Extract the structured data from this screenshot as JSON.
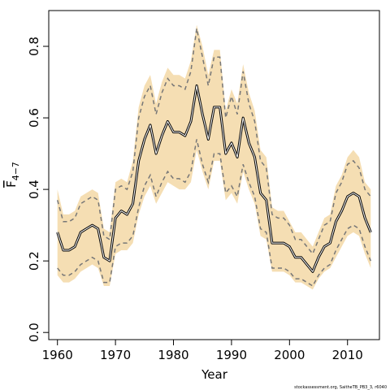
{
  "chart_data": {
    "type": "line",
    "title": "",
    "xlabel": "Year",
    "ylabel_main": "F",
    "ylabel_sub": "4−7",
    "xlim": [
      1958.5,
      2015.5
    ],
    "ylim": [
      -0.02,
      0.9
    ],
    "xticks": [
      1960,
      1970,
      1980,
      1990,
      2000,
      2010
    ],
    "yticks": [
      0.0,
      0.2,
      0.4,
      0.6,
      0.8
    ],
    "ytick_labels": [
      "0.0",
      "0.2",
      "0.4",
      "0.6",
      "0.8"
    ],
    "grid": false,
    "colors": {
      "band": "#f5deb3",
      "median": "#000000",
      "estimate": "#ffffff",
      "ci": "#777777"
    },
    "x": [
      1960,
      1961,
      1962,
      1963,
      1964,
      1965,
      1966,
      1967,
      1968,
      1969,
      1970,
      1971,
      1972,
      1973,
      1974,
      1975,
      1976,
      1977,
      1978,
      1979,
      1980,
      1981,
      1982,
      1983,
      1984,
      1985,
      1986,
      1987,
      1988,
      1989,
      1990,
      1991,
      1992,
      1993,
      1994,
      1995,
      1996,
      1997,
      1998,
      1999,
      2000,
      2001,
      2002,
      2003,
      2004,
      2005,
      2006,
      2007,
      2008,
      2009,
      2010,
      2011,
      2012,
      2013,
      2014
    ],
    "series": [
      {
        "role": "median",
        "values": [
          0.28,
          0.23,
          0.23,
          0.24,
          0.28,
          0.29,
          0.3,
          0.29,
          0.21,
          0.2,
          0.32,
          0.34,
          0.33,
          0.36,
          0.48,
          0.54,
          0.58,
          0.5,
          0.55,
          0.59,
          0.56,
          0.56,
          0.55,
          0.59,
          0.69,
          0.61,
          0.54,
          0.63,
          0.63,
          0.5,
          0.53,
          0.49,
          0.6,
          0.53,
          0.49,
          0.39,
          0.37,
          0.25,
          0.25,
          0.25,
          0.24,
          0.21,
          0.21,
          0.19,
          0.17,
          0.21,
          0.24,
          0.25,
          0.31,
          0.34,
          0.38,
          0.39,
          0.38,
          0.32,
          0.28
        ]
      },
      {
        "role": "estimate",
        "values": [
          0.28,
          0.23,
          0.23,
          0.24,
          0.28,
          0.29,
          0.3,
          0.29,
          0.21,
          0.2,
          0.32,
          0.34,
          0.33,
          0.36,
          0.48,
          0.54,
          0.58,
          0.5,
          0.55,
          0.59,
          0.56,
          0.56,
          0.55,
          0.59,
          0.69,
          0.61,
          0.54,
          0.63,
          0.63,
          0.5,
          0.53,
          0.49,
          0.6,
          0.53,
          0.49,
          0.39,
          0.37,
          0.25,
          0.25,
          0.25,
          0.24,
          0.21,
          0.21,
          0.19,
          0.17,
          0.21,
          0.24,
          0.25,
          0.31,
          0.34,
          0.38,
          0.39,
          0.38,
          0.32,
          0.28
        ]
      },
      {
        "role": "upper_ci",
        "values": [
          0.37,
          0.31,
          0.31,
          0.32,
          0.36,
          0.37,
          0.38,
          0.37,
          0.27,
          0.26,
          0.4,
          0.41,
          0.4,
          0.45,
          0.6,
          0.66,
          0.69,
          0.61,
          0.67,
          0.71,
          0.69,
          0.69,
          0.68,
          0.73,
          0.85,
          0.77,
          0.69,
          0.77,
          0.77,
          0.6,
          0.66,
          0.61,
          0.73,
          0.64,
          0.59,
          0.48,
          0.46,
          0.33,
          0.32,
          0.32,
          0.3,
          0.26,
          0.26,
          0.24,
          0.22,
          0.26,
          0.3,
          0.31,
          0.39,
          0.42,
          0.47,
          0.48,
          0.46,
          0.4,
          0.38
        ]
      },
      {
        "role": "lower_ci",
        "values": [
          0.18,
          0.16,
          0.16,
          0.17,
          0.19,
          0.2,
          0.21,
          0.2,
          0.14,
          0.14,
          0.24,
          0.25,
          0.25,
          0.27,
          0.35,
          0.41,
          0.44,
          0.38,
          0.42,
          0.45,
          0.43,
          0.43,
          0.42,
          0.45,
          0.54,
          0.47,
          0.42,
          0.5,
          0.5,
          0.39,
          0.41,
          0.38,
          0.47,
          0.42,
          0.38,
          0.29,
          0.28,
          0.18,
          0.18,
          0.18,
          0.17,
          0.15,
          0.15,
          0.14,
          0.13,
          0.16,
          0.18,
          0.19,
          0.23,
          0.26,
          0.29,
          0.3,
          0.29,
          0.24,
          0.2
        ]
      },
      {
        "role": "band_upper",
        "values": [
          0.4,
          0.33,
          0.33,
          0.34,
          0.38,
          0.39,
          0.4,
          0.39,
          0.29,
          0.28,
          0.42,
          0.43,
          0.42,
          0.48,
          0.63,
          0.69,
          0.72,
          0.64,
          0.7,
          0.74,
          0.72,
          0.72,
          0.71,
          0.76,
          0.86,
          0.8,
          0.72,
          0.79,
          0.79,
          0.62,
          0.68,
          0.64,
          0.75,
          0.67,
          0.62,
          0.51,
          0.49,
          0.35,
          0.34,
          0.34,
          0.31,
          0.28,
          0.28,
          0.26,
          0.24,
          0.28,
          0.32,
          0.33,
          0.41,
          0.44,
          0.49,
          0.51,
          0.49,
          0.42,
          0.4
        ]
      },
      {
        "role": "band_lower",
        "values": [
          0.16,
          0.14,
          0.14,
          0.15,
          0.17,
          0.18,
          0.19,
          0.18,
          0.13,
          0.13,
          0.22,
          0.23,
          0.23,
          0.25,
          0.33,
          0.38,
          0.41,
          0.36,
          0.39,
          0.42,
          0.41,
          0.4,
          0.4,
          0.42,
          0.51,
          0.45,
          0.4,
          0.48,
          0.48,
          0.37,
          0.39,
          0.36,
          0.45,
          0.4,
          0.36,
          0.27,
          0.26,
          0.17,
          0.17,
          0.17,
          0.16,
          0.14,
          0.14,
          0.13,
          0.12,
          0.15,
          0.17,
          0.18,
          0.21,
          0.24,
          0.27,
          0.28,
          0.27,
          0.22,
          0.18
        ]
      }
    ]
  },
  "credit": "stockassessment.org, SaitheTB_PB3_3, r6040"
}
